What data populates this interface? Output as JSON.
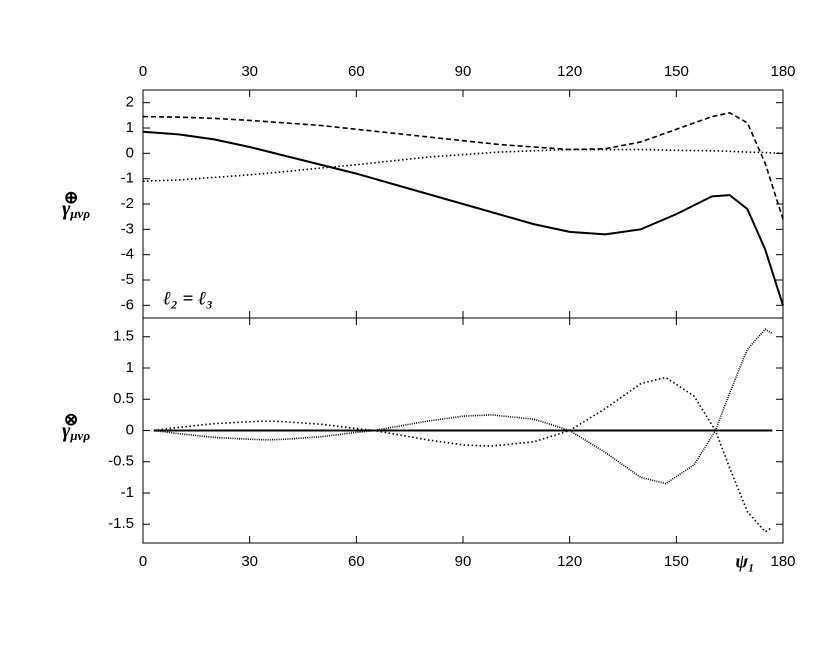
{
  "chart_data": [
    {
      "type": "line",
      "xaxis_position": "top",
      "ylabel": "γ",
      "ylabel_sub": "μνρ",
      "ylabel_sup": "⊕",
      "annotation": "ℓ₂ = ℓ₃",
      "xlim": [
        0,
        180
      ],
      "xticks": [
        0,
        30,
        60,
        90,
        120,
        150,
        180
      ],
      "ylim": [
        -6.5,
        2.5
      ],
      "yticks": [
        -6,
        -5,
        -4,
        -3,
        -2,
        -1,
        0,
        1,
        2
      ],
      "grid": false,
      "x": [
        0,
        10,
        20,
        30,
        40,
        50,
        60,
        70,
        80,
        90,
        100,
        110,
        120,
        130,
        140,
        150,
        160,
        165,
        170,
        175,
        180
      ],
      "series": [
        {
          "color": "#000000",
          "dash": "solid",
          "values": [
            0.85,
            0.75,
            0.55,
            0.25,
            -0.1,
            -0.45,
            -0.8,
            -1.2,
            -1.6,
            -2.0,
            -2.4,
            -2.8,
            -3.1,
            -3.2,
            -3.0,
            -2.4,
            -1.7,
            -1.65,
            -2.2,
            -3.8,
            -6.0
          ]
        },
        {
          "color": "#000000",
          "dash": "dashed",
          "values": [
            1.45,
            1.43,
            1.38,
            1.3,
            1.2,
            1.1,
            0.95,
            0.8,
            0.65,
            0.5,
            0.35,
            0.25,
            0.15,
            0.18,
            0.45,
            0.95,
            1.45,
            1.6,
            1.2,
            -0.4,
            -2.6
          ]
        },
        {
          "color": "#000000",
          "dash": "dotted",
          "values": [
            -1.1,
            -1.05,
            -0.95,
            -0.85,
            -0.72,
            -0.58,
            -0.45,
            -0.3,
            -0.15,
            -0.05,
            0.05,
            0.1,
            0.15,
            0.15,
            0.15,
            0.12,
            0.1,
            0.08,
            0.05,
            0.03,
            0.0
          ]
        }
      ]
    },
    {
      "type": "line",
      "xaxis_position": "bottom",
      "ylabel": "γ",
      "ylabel_sub": "μνρ",
      "ylabel_sup": "⊗",
      "xlabel": "ψ₁",
      "xlim": [
        0,
        180
      ],
      "xticks": [
        0,
        30,
        60,
        90,
        120,
        150,
        180
      ],
      "ylim": [
        -1.8,
        1.8
      ],
      "yticks": [
        -1.5,
        -1,
        -0.5,
        0,
        0.5,
        1,
        1.5
      ],
      "grid": false,
      "x": [
        3,
        10,
        20,
        30,
        35,
        40,
        50,
        60,
        65,
        70,
        80,
        90,
        98,
        110,
        120,
        130,
        140,
        147,
        155,
        161,
        165,
        170,
        175,
        177
      ],
      "series": [
        {
          "color": "#000000",
          "dash": "solid",
          "values": [
            0,
            0,
            0,
            0,
            0,
            0,
            0,
            0,
            0,
            0,
            0,
            0,
            0,
            0,
            0,
            0,
            0,
            0,
            0,
            0,
            0,
            0,
            0,
            0
          ]
        },
        {
          "color": "#000000",
          "dash": "densely-dotted",
          "values": [
            0,
            -0.05,
            -0.11,
            -0.14,
            -0.15,
            -0.14,
            -0.1,
            -0.03,
            0,
            0.05,
            0.15,
            0.23,
            0.25,
            0.18,
            0,
            -0.35,
            -0.75,
            -0.85,
            -0.55,
            0,
            0.6,
            1.3,
            1.62,
            1.55
          ]
        },
        {
          "color": "#000000",
          "dash": "dotted",
          "values": [
            0,
            0.05,
            0.11,
            0.14,
            0.15,
            0.14,
            0.1,
            0.03,
            0,
            -0.05,
            -0.15,
            -0.23,
            -0.25,
            -0.18,
            0,
            0.35,
            0.75,
            0.85,
            0.55,
            0,
            -0.6,
            -1.3,
            -1.62,
            -1.55
          ]
        }
      ]
    }
  ]
}
